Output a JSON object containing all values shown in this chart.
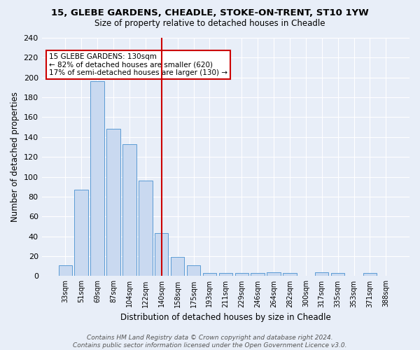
{
  "title1": "15, GLEBE GARDENS, CHEADLE, STOKE-ON-TRENT, ST10 1YW",
  "title2": "Size of property relative to detached houses in Cheadle",
  "xlabel": "Distribution of detached houses by size in Cheadle",
  "ylabel": "Number of detached properties",
  "categories": [
    "33sqm",
    "51sqm",
    "69sqm",
    "87sqm",
    "104sqm",
    "122sqm",
    "140sqm",
    "158sqm",
    "175sqm",
    "193sqm",
    "211sqm",
    "229sqm",
    "246sqm",
    "264sqm",
    "282sqm",
    "300sqm",
    "317sqm",
    "335sqm",
    "353sqm",
    "371sqm",
    "388sqm"
  ],
  "values": [
    11,
    87,
    196,
    148,
    133,
    96,
    43,
    19,
    11,
    3,
    3,
    3,
    3,
    4,
    3,
    0,
    4,
    3,
    0,
    3,
    0
  ],
  "bar_color": "#c9d9f0",
  "bar_edge_color": "#5b9bd5",
  "vline_x": 6.0,
  "vline_color": "#cc0000",
  "annotation_text": "15 GLEBE GARDENS: 130sqm\n← 82% of detached houses are smaller (620)\n17% of semi-detached houses are larger (130) →",
  "annotation_box_color": "#ffffff",
  "annotation_box_edge": "#cc0000",
  "footer_text": "Contains HM Land Registry data © Crown copyright and database right 2024.\nContains public sector information licensed under the Open Government Licence v3.0.",
  "bg_color": "#e8eef8",
  "ylim": [
    0,
    240
  ],
  "yticks": [
    0,
    20,
    40,
    60,
    80,
    100,
    120,
    140,
    160,
    180,
    200,
    220,
    240
  ]
}
